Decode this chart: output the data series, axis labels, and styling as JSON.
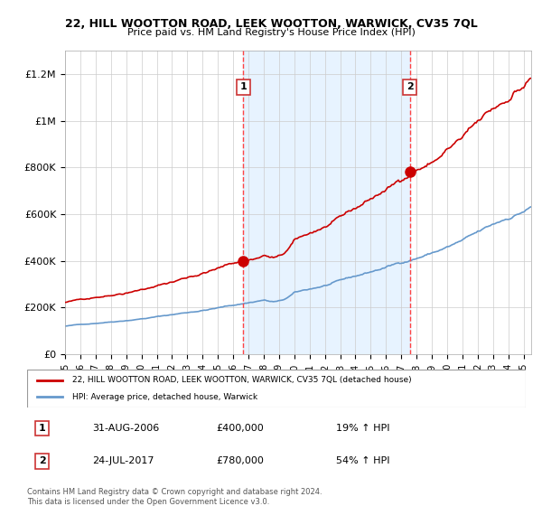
{
  "title1": "22, HILL WOOTTON ROAD, LEEK WOOTTON, WARWICK, CV35 7QL",
  "title2": "Price paid vs. HM Land Registry's House Price Index (HPI)",
  "legend_red": "22, HILL WOOTTON ROAD, LEEK WOOTTON, WARWICK, CV35 7QL (detached house)",
  "legend_blue": "HPI: Average price, detached house, Warwick",
  "annotation1_label": "1",
  "annotation1_date": "31-AUG-2006",
  "annotation1_price": "£400,000",
  "annotation1_hpi": "19% ↑ HPI",
  "annotation2_label": "2",
  "annotation2_date": "24-JUL-2017",
  "annotation2_price": "£780,000",
  "annotation2_hpi": "54% ↑ HPI",
  "footer": "Contains HM Land Registry data © Crown copyright and database right 2024.\nThis data is licensed under the Open Government Licence v3.0.",
  "red_color": "#cc0000",
  "blue_color": "#6699cc",
  "bg_shaded": "#ddeeff",
  "dashed_color": "#ff4444",
  "point1_year": 2006.67,
  "point1_value": 400000,
  "point2_year": 2017.56,
  "point2_value": 780000,
  "ylim": [
    0,
    1300000
  ],
  "xlim_start": 1995.0,
  "xlim_end": 2025.5,
  "yticks": [
    0,
    200000,
    400000,
    600000,
    800000,
    1000000,
    1200000
  ],
  "ytick_labels": [
    "£0",
    "£200K",
    "£400K",
    "£600K",
    "£800K",
    "£1M",
    "£1.2M"
  ]
}
